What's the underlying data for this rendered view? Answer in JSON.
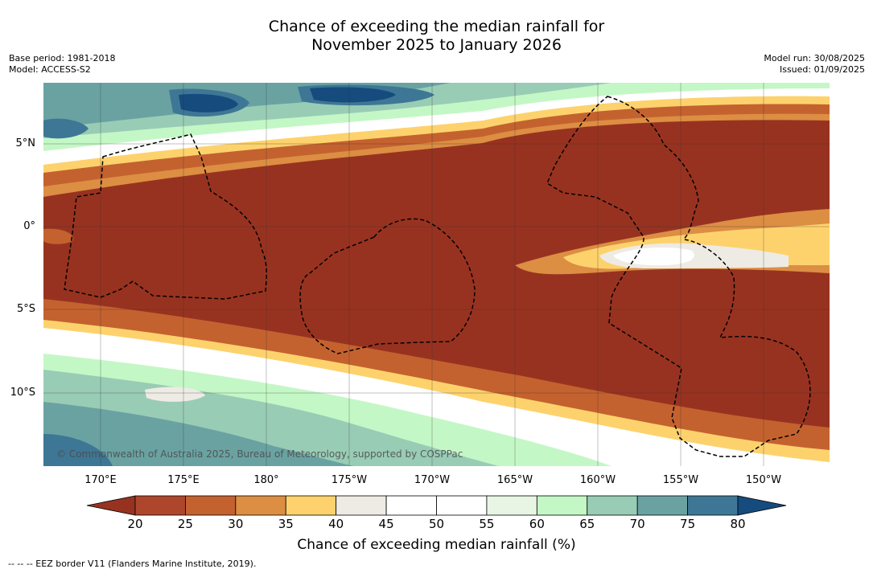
{
  "title_line1": "Chance of exceeding the median rainfall for",
  "title_line2": "November 2025 to January 2026",
  "base_period": "Base period: 1981-2018",
  "model": "Model: ACCESS-S2",
  "model_run": "Model run: 30/08/2025",
  "issued": "Issued: 01/09/2025",
  "lat_labels": [
    "5°N",
    "0°",
    "5°S",
    "10°S"
  ],
  "lon_labels": [
    "170°E",
    "175°E",
    "180°",
    "175°W",
    "170°W",
    "165°W",
    "160°W",
    "155°W",
    "150°W"
  ],
  "copyright": "© Commonwealth of Australia 2025, Bureau of Meteorology, supported by COSPPac",
  "colorbar": {
    "ticks": [
      "20",
      "25",
      "30",
      "35",
      "40",
      "45",
      "50",
      "55",
      "60",
      "65",
      "70",
      "75",
      "80"
    ],
    "colors": [
      "#983220",
      "#ad462b",
      "#c4622f",
      "#dc8e43",
      "#fdd26d",
      "#eeebe5",
      "#ffffff",
      "#ffffff",
      "#e8f5e4",
      "#c4f7c6",
      "#99ccb5",
      "#6aa2a2",
      "#3e7795",
      "#164b7e"
    ],
    "label": "Chance of exceeding median rainfall (%)"
  },
  "footnote": "-- -- -- EEZ border V11 (Flanders Marine Institute, 2019)."
}
